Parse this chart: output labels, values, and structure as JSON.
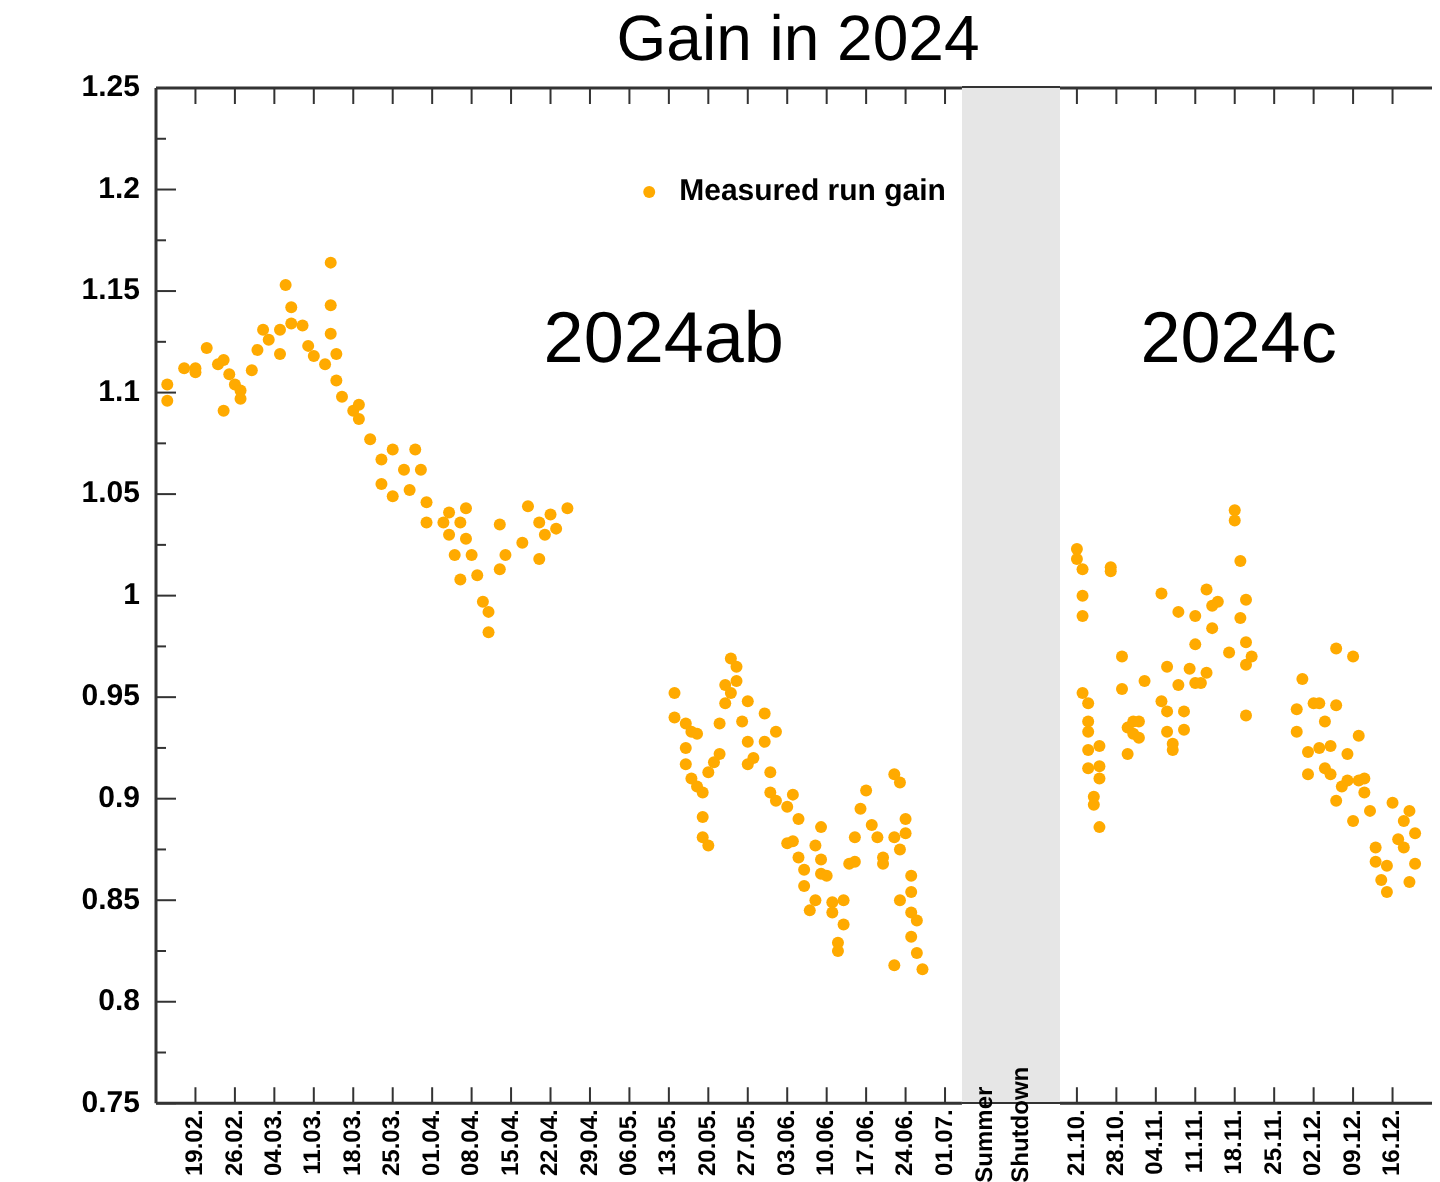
{
  "chart_data": [
    {
      "type": "scatter",
      "title": "Gain in 2024",
      "annotations": [
        "2024ab",
        "Summer Shutdown"
      ],
      "legend": "top right",
      "marker": "circle",
      "grid": false,
      "xlim": [
        "--02-12",
        "--07-04"
      ],
      "xticks": [
        {
          "value": "--02-19",
          "label": "19.02."
        },
        {
          "value": "--02-26",
          "label": "26.02."
        },
        {
          "value": "--03-04",
          "label": "04.03."
        },
        {
          "value": "--03-11",
          "label": "11.03."
        },
        {
          "value": "--03-18",
          "label": "18.03."
        },
        {
          "value": "--03-25",
          "label": "25.03."
        },
        {
          "value": "--04-01",
          "label": "01.04."
        },
        {
          "value": "--04-08",
          "label": "08.04."
        },
        {
          "value": "--04-15",
          "label": "15.04."
        },
        {
          "value": "--04-22",
          "label": "22.04."
        },
        {
          "value": "--04-29",
          "label": "29.04."
        },
        {
          "value": "--05-06",
          "label": "06.05."
        },
        {
          "value": "--05-13",
          "label": "13.05."
        },
        {
          "value": "--05-20",
          "label": "20.05."
        },
        {
          "value": "--05-27",
          "label": "27.05."
        },
        {
          "value": "--06-03",
          "label": "03.06."
        },
        {
          "value": "--06-10",
          "label": "10.06."
        },
        {
          "value": "--06-17",
          "label": "17.06."
        },
        {
          "value": "--06-24",
          "label": "24.06."
        },
        {
          "value": "--07-01",
          "label": "01.07."
        }
      ],
      "ylim": [
        0.75,
        1.25
      ],
      "yticks": [
        0.75,
        0.8,
        0.85,
        0.9,
        0.95,
        1,
        1.05,
        1.1,
        1.15,
        1.2,
        1.25
      ],
      "series": [
        {
          "name": "Measured run gain",
          "color": "#ffaa00",
          "x": [
            "--02-14",
            "--02-14",
            "--02-17",
            "--02-19",
            "--02-19",
            "--02-21",
            "--02-23",
            "--02-24",
            "--02-24",
            "--02-25",
            "--02-26",
            "--02-27",
            "--02-27",
            "--02-29",
            "--03-01",
            "--03-02",
            "--03-03",
            "--03-05",
            "--03-05",
            "--03-06",
            "--03-07",
            "--03-07",
            "--03-09",
            "--03-10",
            "--03-11",
            "--03-13",
            "--03-14",
            "--03-14",
            "--03-14",
            "--03-15",
            "--03-15",
            "--03-16",
            "--03-18",
            "--03-19",
            "--03-19",
            "--03-21",
            "--03-23",
            "--03-23",
            "--03-25",
            "--03-25",
            "--03-27",
            "--03-28",
            "--03-29",
            "--03-30",
            "--03-31",
            "--03-31",
            "--04-03",
            "--04-04",
            "--04-04",
            "--04-05",
            "--04-06",
            "--04-06",
            "--04-07",
            "--04-07",
            "--04-08",
            "--04-09",
            "--04-10",
            "--04-11",
            "--04-11",
            "--04-13",
            "--04-13",
            "--04-14",
            "--04-17",
            "--04-18",
            "--04-20",
            "--04-20",
            "--04-21",
            "--04-22",
            "--04-23",
            "--04-25",
            "--05-14",
            "--05-14",
            "--05-16",
            "--05-17",
            "--05-18",
            "--05-16",
            "--05-16",
            "--05-17",
            "--05-18",
            "--05-19",
            "--05-19",
            "--05-19",
            "--05-20",
            "--05-20",
            "--05-21",
            "--05-22",
            "--05-22",
            "--05-23",
            "--05-24",
            "--05-23",
            "--05-25",
            "--05-24",
            "--05-25",
            "--05-27",
            "--05-26",
            "--05-27",
            "--05-27",
            "--05-28",
            "--05-30",
            "--05-30",
            "--06-01",
            "--05-31",
            "--05-31",
            "--06-01",
            "--06-03",
            "--06-04",
            "--06-05",
            "--06-03",
            "--06-04",
            "--06-05",
            "--06-06",
            "--06-06",
            "--06-07",
            "--06-08",
            "--06-09",
            "--06-08",
            "--06-09",
            "--06-09",
            "--06-10",
            "--06-11",
            "--06-11",
            "--06-12",
            "--06-12",
            "--06-13",
            "--06-13",
            "--06-14",
            "--06-15",
            "--06-15",
            "--06-16",
            "--06-17",
            "--06-18",
            "--06-19",
            "--06-20",
            "--06-20",
            "--06-22",
            "--06-23",
            "--06-22",
            "--06-23",
            "--06-24",
            "--06-24",
            "--06-25",
            "--06-23",
            "--06-25",
            "--06-25",
            "--06-26",
            "--06-25",
            "--06-26",
            "--06-27",
            "--06-22"
          ],
          "values": [
            1.096,
            1.104,
            1.112,
            1.11,
            1.112,
            1.122,
            1.114,
            1.116,
            1.091,
            1.109,
            1.104,
            1.101,
            1.097,
            1.111,
            1.121,
            1.131,
            1.126,
            1.119,
            1.131,
            1.153,
            1.142,
            1.134,
            1.133,
            1.123,
            1.118,
            1.114,
            1.164,
            1.143,
            1.129,
            1.119,
            1.106,
            1.098,
            1.091,
            1.094,
            1.087,
            1.077,
            1.067,
            1.055,
            1.049,
            1.072,
            1.062,
            1.052,
            1.072,
            1.062,
            1.046,
            1.036,
            1.036,
            1.03,
            1.041,
            1.02,
            1.008,
            1.036,
            1.043,
            1.028,
            1.02,
            1.01,
            0.997,
            0.982,
            0.992,
            1.013,
            1.035,
            1.02,
            1.026,
            1.044,
            1.036,
            1.018,
            1.03,
            1.04,
            1.033,
            1.043,
            0.952,
            0.94,
            0.937,
            0.933,
            0.932,
            0.925,
            0.917,
            0.91,
            0.906,
            0.903,
            0.891,
            0.881,
            0.877,
            0.913,
            0.918,
            0.922,
            0.937,
            0.947,
            0.952,
            0.956,
            0.958,
            0.969,
            0.965,
            0.948,
            0.938,
            0.928,
            0.917,
            0.92,
            0.928,
            0.942,
            0.933,
            0.913,
            0.903,
            0.899,
            0.896,
            0.902,
            0.89,
            0.878,
            0.879,
            0.871,
            0.865,
            0.857,
            0.845,
            0.85,
            0.886,
            0.877,
            0.87,
            0.863,
            0.862,
            0.849,
            0.844,
            0.829,
            0.825,
            0.838,
            0.85,
            0.868,
            0.881,
            0.869,
            0.895,
            0.904,
            0.887,
            0.881,
            0.871,
            0.868,
            0.912,
            0.908,
            0.881,
            0.875,
            0.89,
            0.883,
            0.862,
            0.85,
            0.854,
            0.844,
            0.84,
            0.832,
            0.824,
            0.816,
            0.818
          ]
        }
      ]
    },
    {
      "type": "scatter",
      "annotations": [
        "2024c"
      ],
      "marker": "circle",
      "grid": false,
      "tick_labels": "x",
      "xlim": [
        "--10-18",
        "--12-23"
      ],
      "xticks": [
        {
          "value": "--10-21",
          "label": "21.10."
        },
        {
          "value": "--10-28",
          "label": "28.10."
        },
        {
          "value": "--11-04",
          "label": "04.11."
        },
        {
          "value": "--11-11",
          "label": "11.11."
        },
        {
          "value": "--11-18",
          "label": "18.11."
        },
        {
          "value": "--11-25",
          "label": "25.11."
        },
        {
          "value": "--12-02",
          "label": "02.12."
        },
        {
          "value": "--12-09",
          "label": "09.12."
        },
        {
          "value": "--12-16",
          "label": "16.12."
        }
      ],
      "ylim": [
        0.75,
        1.25
      ],
      "yticks": [
        0.75,
        0.8,
        0.85,
        0.9,
        0.95,
        1,
        1.05,
        1.1,
        1.15,
        1.2,
        1.25
      ],
      "series": [
        {
          "color": "#ffaa00",
          "x": [
            "--10-21",
            "--10-21",
            "--10-22",
            "--10-22",
            "--10-22",
            "--10-22",
            "--10-23",
            "--10-23",
            "--10-23",
            "--10-23",
            "--10-23",
            "--10-24",
            "--10-24",
            "--10-25",
            "--10-25",
            "--10-25",
            "--10-25",
            "--10-27",
            "--10-27",
            "--10-29",
            "--10-29",
            "--10-30",
            "--10-30",
            "--10-31",
            "--10-31",
            "--11-01",
            "--11-01",
            "--11-02",
            "--11-05",
            "--11-05",
            "--11-06",
            "--11-06",
            "--11-06",
            "--11-07",
            "--11-07",
            "--11-08",
            "--11-08",
            "--11-09",
            "--11-09",
            "--11-10",
            "--11-11",
            "--11-11",
            "--11-11",
            "--11-12",
            "--11-13",
            "--11-13",
            "--11-14",
            "--11-14",
            "--11-15",
            "--11-17",
            "--11-18",
            "--11-18",
            "--11-19",
            "--11-19",
            "--11-20",
            "--11-20",
            "--11-20",
            "--11-21",
            "--11-20",
            "--11-29",
            "--11-29",
            "--11-30",
            "--12-01",
            "--12-01",
            "--12-02",
            "--12-03",
            "--12-03",
            "--12-04",
            "--12-04",
            "--12-05",
            "--12-05",
            "--12-06",
            "--12-06",
            "--12-06",
            "--12-07",
            "--12-08",
            "--12-08",
            "--12-09",
            "--12-09",
            "--12-10",
            "--12-10",
            "--12-11",
            "--12-11",
            "--12-12",
            "--12-13",
            "--12-13",
            "--12-14",
            "--12-15",
            "--12-15",
            "--12-16",
            "--12-17",
            "--12-18",
            "--12-18",
            "--12-19",
            "--12-20",
            "--12-20",
            "--12-19"
          ],
          "values": [
            1.023,
            1.018,
            1.013,
            1,
            0.99,
            0.952,
            0.947,
            0.938,
            0.933,
            0.924,
            0.915,
            0.901,
            0.897,
            0.886,
            0.926,
            0.916,
            0.91,
            1.014,
            1.012,
            0.97,
            0.954,
            0.935,
            0.922,
            0.938,
            0.932,
            0.938,
            0.93,
            0.958,
            1.001,
            0.948,
            0.965,
            0.943,
            0.933,
            0.927,
            0.924,
            0.992,
            0.956,
            0.943,
            0.934,
            0.964,
            0.957,
            0.99,
            0.976,
            0.957,
            0.962,
            1.003,
            0.984,
            0.995,
            0.997,
            0.972,
            1.042,
            1.037,
            0.989,
            1.017,
            0.966,
            0.998,
            0.977,
            0.97,
            0.941,
            0.944,
            0.933,
            0.959,
            0.923,
            0.912,
            0.947,
            0.947,
            0.925,
            0.915,
            0.938,
            0.926,
            0.912,
            0.946,
            0.974,
            0.899,
            0.906,
            0.922,
            0.909,
            0.97,
            0.889,
            0.909,
            0.931,
            0.91,
            0.903,
            0.894,
            0.876,
            0.869,
            0.86,
            0.854,
            0.867,
            0.898,
            0.88,
            0.889,
            0.876,
            0.894,
            0.883,
            0.868,
            0.859
          ]
        }
      ]
    }
  ]
}
